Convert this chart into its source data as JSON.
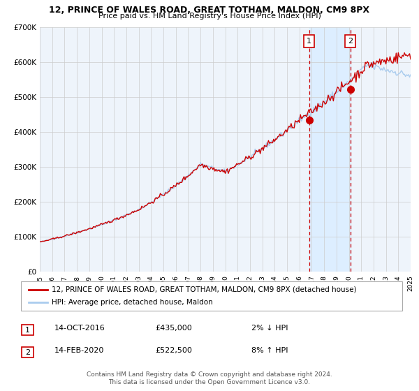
{
  "title_line1": "12, PRINCE OF WALES ROAD, GREAT TOTHAM, MALDON, CM9 8PX",
  "title_line2": "Price paid vs. HM Land Registry's House Price Index (HPI)",
  "ylim": [
    0,
    700000
  ],
  "yticks": [
    0,
    100000,
    200000,
    300000,
    400000,
    500000,
    600000,
    700000
  ],
  "ytick_labels": [
    "£0",
    "£100K",
    "£200K",
    "£300K",
    "£400K",
    "£500K",
    "£600K",
    "£700K"
  ],
  "x_start_year": 1995,
  "x_end_year": 2025,
  "xtick_years": [
    1995,
    1996,
    1997,
    1998,
    1999,
    2000,
    2001,
    2002,
    2003,
    2004,
    2005,
    2006,
    2007,
    2008,
    2009,
    2010,
    2011,
    2012,
    2013,
    2014,
    2015,
    2016,
    2017,
    2018,
    2019,
    2020,
    2021,
    2022,
    2023,
    2024,
    2025
  ],
  "legend_line1": "12, PRINCE OF WALES ROAD, GREAT TOTHAM, MALDON, CM9 8PX (detached house)",
  "legend_line2": "HPI: Average price, detached house, Maldon",
  "legend_color1": "#cc0000",
  "legend_color2": "#aaccee",
  "purchase1_x": 2016.79,
  "purchase1_y": 435000,
  "purchase1_label": "1",
  "purchase2_x": 2020.12,
  "purchase2_y": 522500,
  "purchase2_label": "2",
  "shade_x1": 2016.79,
  "shade_x2": 2020.12,
  "shade_color": "#ddeeff",
  "vline_color": "#cc0000",
  "grid_color": "#cccccc",
  "bg_color": "#ffffff",
  "plot_bg_color": "#eef4fb",
  "footer": "Contains HM Land Registry data © Crown copyright and database right 2024.\nThis data is licensed under the Open Government Licence v3.0."
}
